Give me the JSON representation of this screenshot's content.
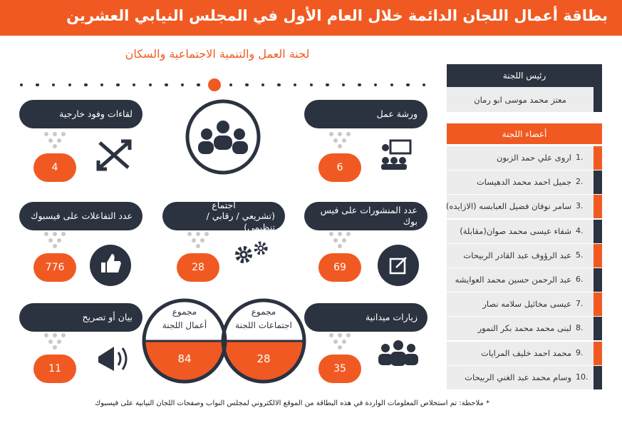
{
  "header": {
    "title": "بطاقة أعمال اللجان الدائمة خلال العام الأول في المجلس النيابي العشرين"
  },
  "committee": "لجنة العمل والتنمية الاجتماعية والسكان",
  "stats": [
    {
      "label": [
        "ورشة عمل"
      ],
      "value": 6
    },
    {
      "label": [
        "لقاءات وفود خارجية"
      ],
      "value": 4
    },
    {
      "label": [
        "عدد المنشورات على فيس بوك"
      ],
      "value": 69
    },
    {
      "label": [
        "اجتماع",
        "(تشريعي / رقابي / تنظيمي)"
      ],
      "value": 28
    },
    {
      "label": [
        "عدد التفاعلات على فيسبوك"
      ],
      "value": 776
    },
    {
      "label": [
        "زيارات ميدانية"
      ],
      "value": 35
    },
    {
      "label": [
        "بيان أو تصريح"
      ],
      "value": 11
    }
  ],
  "totals": [
    {
      "label": [
        "مجموع",
        "اجتماعات اللجنة"
      ],
      "value": 28
    },
    {
      "label": [
        "مجموع",
        "أعمال اللجنة"
      ],
      "value": 84
    }
  ],
  "chair": {
    "label": "رئيس اللجنة",
    "name": "معتز محمد موسى ابو رمان"
  },
  "members": {
    "label": "أعضاء اللجنة",
    "list": [
      {
        "number": "1.",
        "name": "اروى علي حمد الزبون"
      },
      {
        "number": "2.",
        "name": "جميل احمد محمد الدهيسات"
      },
      {
        "number": "3.",
        "name": "سامر نوفان فضيل العبابسه (الازايده)"
      },
      {
        "number": "4.",
        "name": "شفاء عيسى محمد صوان(مقابلة)"
      },
      {
        "number": "5.",
        "name": "عبد الرؤوف عبد القادر الربيحات"
      },
      {
        "number": "6.",
        "name": "عبد الرحمن حسين محمد العوايشه"
      },
      {
        "number": "7.",
        "name": "عيسى مخائيل سلامه نصار"
      },
      {
        "number": "8.",
        "name": "لبنى محمد محمد بكر النمور"
      },
      {
        "number": "9.",
        "name": "محمد احمد خليف المرايات"
      },
      {
        "number": "10.",
        "name": "وسام محمد عبد الغني الربيحات"
      }
    ]
  },
  "note": "* ملاحظة: تم استخلاص المعلومات الواردة في هذه البطاقة من الموقع الالكتروني لمجلس النواب وصفحات اللجان النيابية على فيسبوك"
}
